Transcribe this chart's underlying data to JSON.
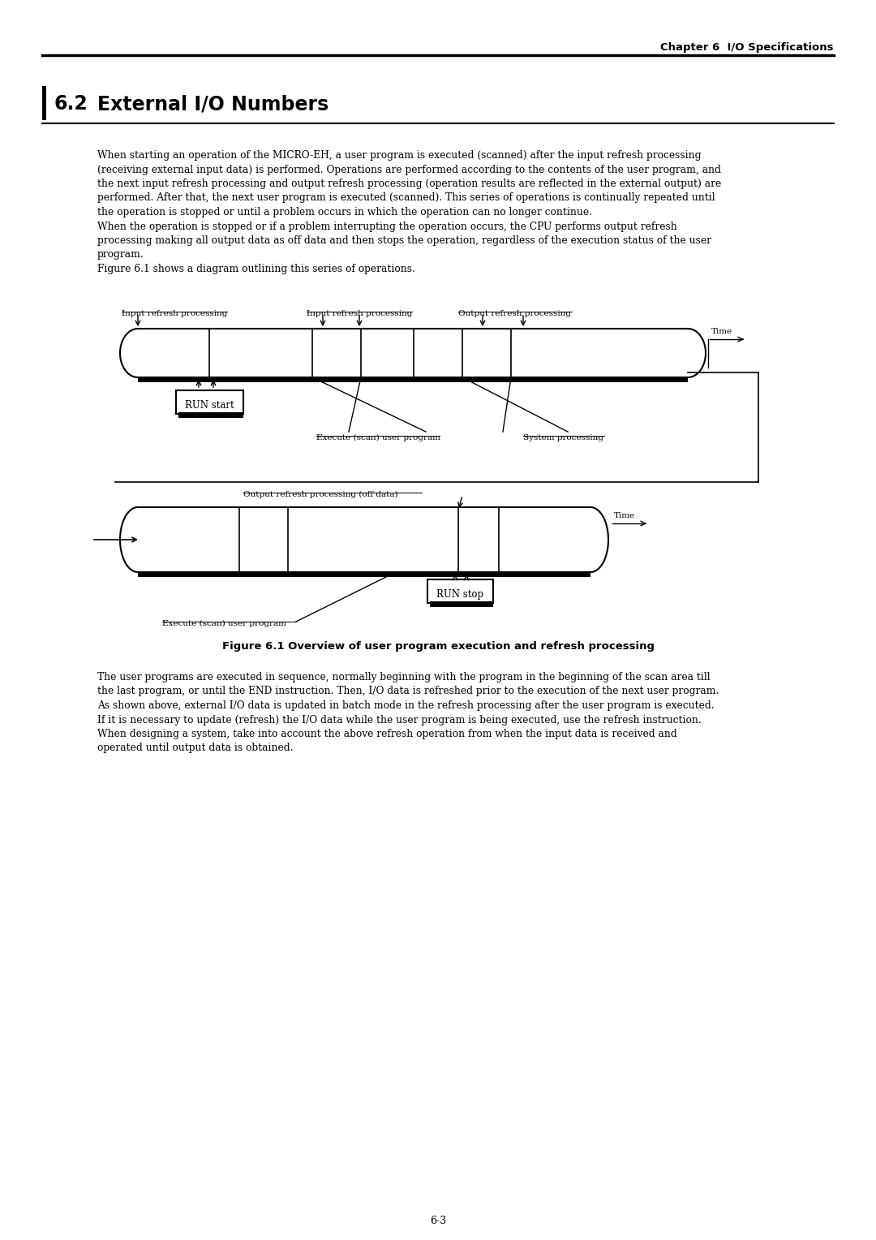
{
  "title_chapter": "Chapter 6  I/O Specifications",
  "section_number": "6.2",
  "section_title": "External I/O Numbers",
  "body_text_lines": [
    "When starting an operation of the MICRO-EH, a user program is executed (scanned) after the input refresh processing",
    "(receiving external input data) is performed. Operations are performed according to the contents of the user program, and",
    "the next input refresh processing and output refresh processing (operation results are reflected in the external output) are",
    "performed. After that, the next user program is executed (scanned). This series of operations is continually repeated until",
    "the operation is stopped or until a problem occurs in which the operation can no longer continue.",
    "When the operation is stopped or if a problem interrupting the operation occurs, the CPU performs output refresh",
    "processing making all output data as off data and then stops the operation, regardless of the execution status of the user",
    "program.",
    "Figure 6.1 shows a diagram outlining this series of operations."
  ],
  "figure_caption": "Figure 6.1 Overview of user program execution and refresh processing",
  "body_text2_lines": [
    "The user programs are executed in sequence, normally beginning with the program in the beginning of the scan area till",
    "the last program, or until the END instruction. Then, I/O data is refreshed prior to the execution of the next user program.",
    "As shown above, external I/O data is updated in batch mode in the refresh processing after the user program is executed.",
    "If it is necessary to update (refresh) the I/O data while the user program is being executed, use the refresh instruction.",
    "When designing a system, take into account the above refresh operation from when the input data is received and",
    "operated until output data is obtained."
  ],
  "page_number": "6-3",
  "bg_color": "#ffffff",
  "text_color": "#000000"
}
